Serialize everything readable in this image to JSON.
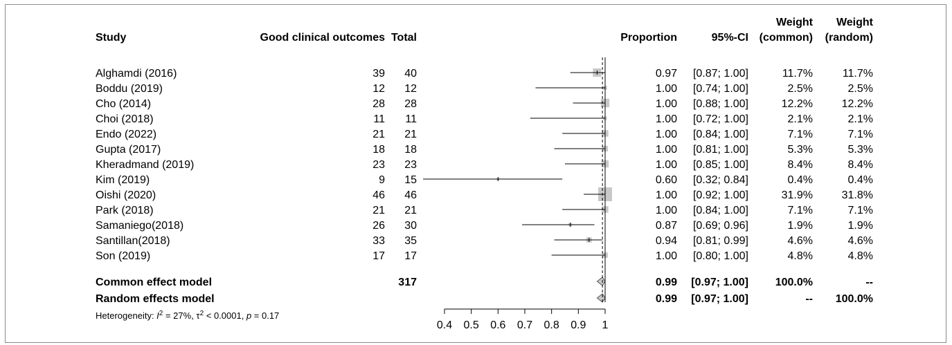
{
  "headers": {
    "study": "Study",
    "events": "Good clinical outcomes",
    "total": "Total",
    "proportion": "Proportion",
    "ci": "95%-CI",
    "weight_common_l1": "Weight",
    "weight_common_l2": "(common)",
    "weight_random_l1": "Weight",
    "weight_random_l2": "(random)"
  },
  "chart_data": {
    "type": "forest",
    "xlim": [
      0.4,
      1
    ],
    "xticks": [
      0.4,
      0.5,
      0.6,
      0.7,
      0.8,
      0.9,
      1
    ],
    "xtick_labels": [
      "0.4",
      "0.5",
      "0.6",
      "0.7",
      "0.8",
      "0.9",
      "1"
    ],
    "reference_line": 0.99,
    "studies": [
      {
        "study": "Alghamdi (2016)",
        "events": "39",
        "total": "40",
        "proportion": 0.97,
        "ci_lower": 0.87,
        "ci_upper": 1.0,
        "prop_text": "0.97",
        "ci_text": "[0.87; 1.00]",
        "w_common": "11.7%",
        "w_random": "11.7%",
        "weight": 11.7
      },
      {
        "study": "Boddu (2019)",
        "events": "12",
        "total": "12",
        "proportion": 1.0,
        "ci_lower": 0.74,
        "ci_upper": 1.0,
        "prop_text": "1.00",
        "ci_text": "[0.74; 1.00]",
        "w_common": "2.5%",
        "w_random": "2.5%",
        "weight": 2.5
      },
      {
        "study": "Cho (2014)",
        "events": "28",
        "total": "28",
        "proportion": 1.0,
        "ci_lower": 0.88,
        "ci_upper": 1.0,
        "prop_text": "1.00",
        "ci_text": "[0.88; 1.00]",
        "w_common": "12.2%",
        "w_random": "12.2%",
        "weight": 12.2
      },
      {
        "study": "Choi (2018)",
        "events": "11",
        "total": "11",
        "proportion": 1.0,
        "ci_lower": 0.72,
        "ci_upper": 1.0,
        "prop_text": "1.00",
        "ci_text": "[0.72; 1.00]",
        "w_common": "2.1%",
        "w_random": "2.1%",
        "weight": 2.1
      },
      {
        "study": "Endo (2022)",
        "events": "21",
        "total": "21",
        "proportion": 1.0,
        "ci_lower": 0.84,
        "ci_upper": 1.0,
        "prop_text": "1.00",
        "ci_text": "[0.84; 1.00]",
        "w_common": "7.1%",
        "w_random": "7.1%",
        "weight": 7.1
      },
      {
        "study": "Gupta (2017)",
        "events": "18",
        "total": "18",
        "proportion": 1.0,
        "ci_lower": 0.81,
        "ci_upper": 1.0,
        "prop_text": "1.00",
        "ci_text": "[0.81; 1.00]",
        "w_common": "5.3%",
        "w_random": "5.3%",
        "weight": 5.3
      },
      {
        "study": "Kheradmand (2019)",
        "events": "23",
        "total": "23",
        "proportion": 1.0,
        "ci_lower": 0.85,
        "ci_upper": 1.0,
        "prop_text": "1.00",
        "ci_text": "[0.85; 1.00]",
        "w_common": "8.4%",
        "w_random": "8.4%",
        "weight": 8.4
      },
      {
        "study": "Kim (2019)",
        "events": "9",
        "total": "15",
        "proportion": 0.6,
        "ci_lower": 0.32,
        "ci_upper": 0.84,
        "prop_text": "0.60",
        "ci_text": "[0.32; 0.84]",
        "w_common": "0.4%",
        "w_random": "0.4%",
        "weight": 0.4
      },
      {
        "study": "Oishi (2020)",
        "events": "46",
        "total": "46",
        "proportion": 1.0,
        "ci_lower": 0.92,
        "ci_upper": 1.0,
        "prop_text": "1.00",
        "ci_text": "[0.92; 1.00]",
        "w_common": "31.9%",
        "w_random": "31.8%",
        "weight": 31.9
      },
      {
        "study": "Park (2018)",
        "events": "21",
        "total": "21",
        "proportion": 1.0,
        "ci_lower": 0.84,
        "ci_upper": 1.0,
        "prop_text": "1.00",
        "ci_text": "[0.84; 1.00]",
        "w_common": "7.1%",
        "w_random": "7.1%",
        "weight": 7.1
      },
      {
        "study": "Samaniego(2018)",
        "events": "26",
        "total": "30",
        "proportion": 0.87,
        "ci_lower": 0.69,
        "ci_upper": 0.96,
        "prop_text": "0.87",
        "ci_text": "[0.69; 0.96]",
        "w_common": "1.9%",
        "w_random": "1.9%",
        "weight": 1.9
      },
      {
        "study": "Santillan(2018)",
        "events": "33",
        "total": "35",
        "proportion": 0.94,
        "ci_lower": 0.81,
        "ci_upper": 0.99,
        "prop_text": "0.94",
        "ci_text": "[0.81; 0.99]",
        "w_common": "4.6%",
        "w_random": "4.6%",
        "weight": 4.6
      },
      {
        "study": "Son (2019)",
        "events": "17",
        "total": "17",
        "proportion": 1.0,
        "ci_lower": 0.8,
        "ci_upper": 1.0,
        "prop_text": "1.00",
        "ci_text": "[0.80; 1.00]",
        "w_common": "4.8%",
        "w_random": "4.8%",
        "weight": 4.8
      }
    ],
    "pooled": [
      {
        "label": "Common effect model",
        "total": "317",
        "proportion": 0.99,
        "ci_lower": 0.97,
        "ci_upper": 1.0,
        "prop_text": "0.99",
        "ci_text": "[0.97; 1.00]",
        "w_common": "100.0%",
        "w_random": "--"
      },
      {
        "label": "Random effects model",
        "total": "",
        "proportion": 0.99,
        "ci_lower": 0.97,
        "ci_upper": 1.0,
        "prop_text": "0.99",
        "ci_text": "[0.97; 1.00]",
        "w_common": "--",
        "w_random": "100.0%"
      }
    ],
    "heterogeneity": {
      "prefix": "Heterogeneity: ",
      "i2_symbol": "I",
      "i2_value": " = 27%, ",
      "tau_symbol": "τ",
      "tau_value": " < 0.0001, ",
      "p_symbol": "p",
      "p_value": " = 0.17"
    },
    "colors": {
      "box": "#c8c8c8",
      "line": "#000000",
      "diamond": "#c8c8c8"
    }
  }
}
